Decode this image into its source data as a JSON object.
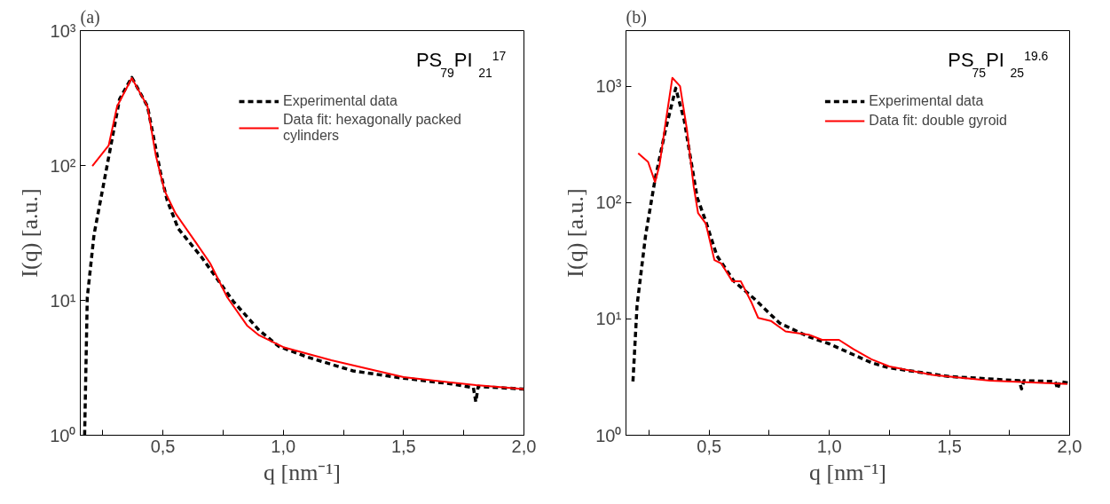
{
  "chart_data": [
    {
      "type": "line",
      "title": "(a)",
      "xlabel": "q [nm⁻¹]",
      "ylabel": "I(q) [a.u.]",
      "annotations": [
        "PS$_{79}$PI$_{21}$$^{17}$"
      ],
      "log": "y",
      "grid": false,
      "legend": "top right",
      "marker": "none",
      "xlim": [
        0.157,
        2.0
      ],
      "xticks": [
        {
          "value": 0.25,
          "label": null
        },
        {
          "value": 0.5,
          "label": "0,5"
        },
        {
          "value": 0.75,
          "label": null
        },
        {
          "value": 1.0,
          "label": "1,0"
        },
        {
          "value": 1.25,
          "label": null
        },
        {
          "value": 1.5,
          "label": "1,5"
        },
        {
          "value": 1.75,
          "label": null
        },
        {
          "value": 2.0,
          "label": "2,0"
        }
      ],
      "ylim": [
        1,
        1000
      ],
      "yticks": [
        {
          "value": 1,
          "label": "10⁰"
        },
        {
          "value": 10,
          "label": "10¹"
        },
        {
          "value": 100,
          "label": "10²"
        },
        {
          "value": 1000,
          "label": "10³"
        }
      ],
      "series": [
        {
          "name": "Experimental data",
          "color": "#000000",
          "line_style": "dashed",
          "x": [
            0.175,
            0.186,
            0.214,
            0.268,
            0.32,
            0.371,
            0.436,
            0.49,
            0.518,
            0.564,
            0.66,
            0.793,
            0.9,
            0.982,
            1.1,
            1.29,
            1.49,
            1.7,
            1.79,
            1.8,
            1.81,
            1.9,
            2.0
          ],
          "values": [
            1.0,
            10.5,
            30.7,
            99,
            310,
            450,
            275,
            89,
            55,
            34,
            21,
            9.8,
            6.0,
            4.55,
            3.8,
            3.0,
            2.66,
            2.4,
            2.25,
            1.77,
            2.3,
            2.25,
            2.2
          ]
        },
        {
          "name": "Data fit: hexagonally packed cylinders",
          "color": "#ff0000",
          "line_style": "solid",
          "x": [
            0.207,
            0.275,
            0.31,
            0.371,
            0.436,
            0.471,
            0.507,
            0.553,
            0.636,
            0.696,
            0.768,
            0.85,
            0.9,
            1.0,
            1.2,
            1.5,
            1.8,
            2.0
          ],
          "values": [
            99,
            141,
            275,
            445,
            275,
            118,
            65,
            44,
            27,
            18.9,
            10.5,
            6.5,
            5.5,
            4.5,
            3.6,
            2.7,
            2.35,
            2.2
          ]
        }
      ]
    },
    {
      "type": "line",
      "title": "(b)",
      "xlabel": "q [nm⁻¹]",
      "ylabel": "I(q) [a.u.]",
      "annotations": [
        "PS$_{75}$PI$_{25}$$^{19.6}$"
      ],
      "log": "y",
      "grid": false,
      "legend": "top right",
      "marker": "none",
      "xlim": [
        0.154,
        2.0
      ],
      "xticks": [
        {
          "value": 0.25,
          "label": null
        },
        {
          "value": 0.5,
          "label": "0,5"
        },
        {
          "value": 0.75,
          "label": null
        },
        {
          "value": 1.0,
          "label": "1,0"
        },
        {
          "value": 1.25,
          "label": null
        },
        {
          "value": 1.5,
          "label": "1,5"
        },
        {
          "value": 1.75,
          "label": null
        },
        {
          "value": 2.0,
          "label": "2,0"
        }
      ],
      "ylim": [
        1,
        3000
      ],
      "yticks": [
        {
          "value": 1,
          "label": "10⁰"
        },
        {
          "value": 10,
          "label": "10¹"
        },
        {
          "value": 100,
          "label": "10²"
        },
        {
          "value": 1000,
          "label": "10³"
        }
      ],
      "series": [
        {
          "name": "Experimental data",
          "color": "#000000",
          "line_style": "dashed",
          "x": [
            0.183,
            0.2,
            0.236,
            0.275,
            0.318,
            0.361,
            0.396,
            0.45,
            0.486,
            0.532,
            0.604,
            0.686,
            0.793,
            0.915,
            1.0,
            1.175,
            1.247,
            1.497,
            1.79,
            1.8,
            1.81,
            1.94,
            1.95,
            1.96,
            2.0
          ],
          "values": [
            2.9,
            13,
            53,
            158,
            418,
            960,
            513,
            111,
            69,
            35,
            21,
            15,
            9.2,
            7.0,
            6.1,
            4.2,
            3.8,
            3.2,
            2.94,
            2.5,
            2.94,
            2.9,
            2.5,
            2.9,
            2.8
          ]
        },
        {
          "name": "Data fit: double gyroid",
          "color": "#ff0000",
          "line_style": "solid",
          "x": [
            0.205,
            0.246,
            0.275,
            0.293,
            0.318,
            0.347,
            0.379,
            0.408,
            0.436,
            0.454,
            0.486,
            0.522,
            0.55,
            0.597,
            0.632,
            0.675,
            0.704,
            0.757,
            0.818,
            0.915,
            0.97,
            1.04,
            1.1,
            1.175,
            1.25,
            1.43,
            1.67,
            1.99
          ],
          "values": [
            265,
            223,
            150,
            207,
            474,
            1180,
            1000,
            418,
            136,
            81,
            66,
            32,
            30,
            21,
            21,
            14,
            10.2,
            9.6,
            7.8,
            7.3,
            6.6,
            6.6,
            5.5,
            4.5,
            3.9,
            3.3,
            2.94,
            2.76
          ]
        }
      ]
    }
  ]
}
